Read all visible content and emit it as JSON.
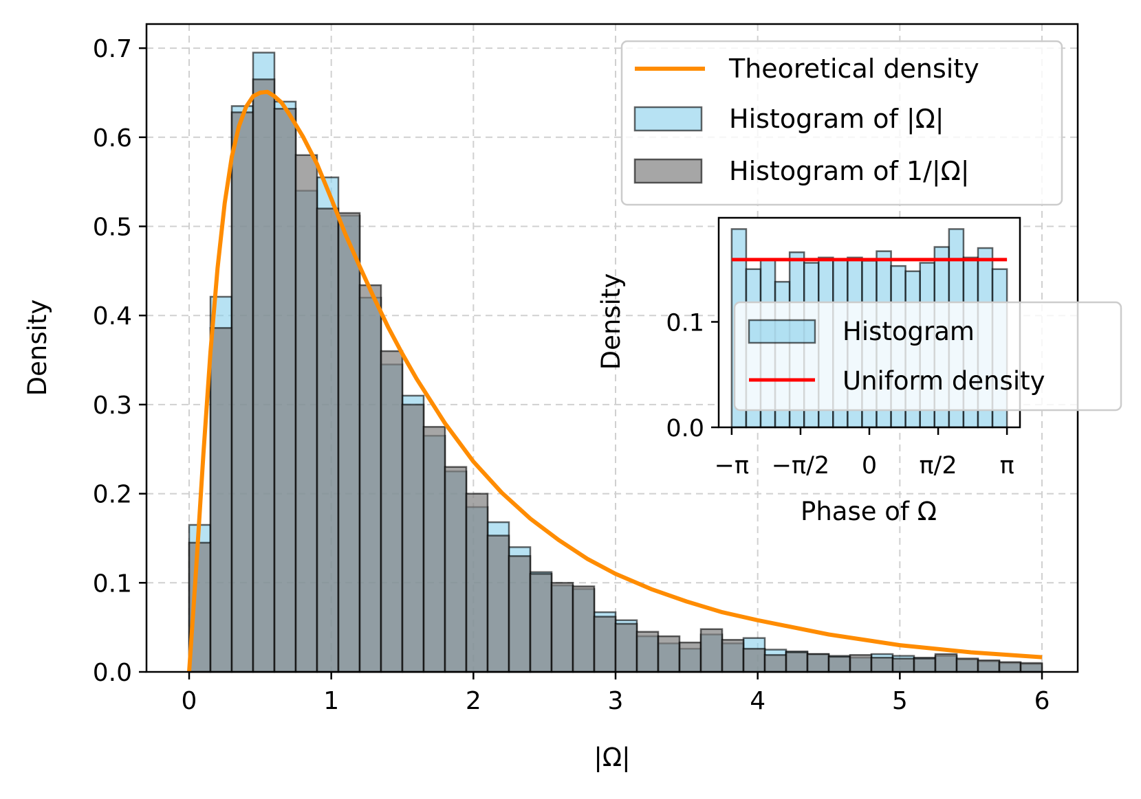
{
  "chart_data": [
    {
      "type": "bar",
      "xlabel": "|Ω|",
      "ylabel": "Density",
      "xlim": [
        -0.3,
        6.3
      ],
      "ylim": [
        0,
        0.73
      ],
      "xticks": [
        "0",
        "1",
        "2",
        "3",
        "4",
        "5",
        "6"
      ],
      "yticks": [
        "0.0",
        "0.1",
        "0.2",
        "0.3",
        "0.4",
        "0.5",
        "0.6",
        "0.7"
      ],
      "grid": true,
      "legend_position": "upper-right",
      "bin_edges": [
        0.0,
        0.15,
        0.3,
        0.45,
        0.6,
        0.75,
        0.9,
        1.05,
        1.2,
        1.35,
        1.5,
        1.65,
        1.8,
        1.95,
        2.1,
        2.25,
        2.4,
        2.55,
        2.7,
        2.85,
        3.0,
        3.15,
        3.3,
        3.45,
        3.6,
        3.75,
        3.9,
        4.05,
        4.2,
        4.35,
        4.5,
        4.65,
        4.8,
        4.95,
        5.1,
        5.25,
        5.4,
        5.55,
        5.7,
        5.85,
        6.0
      ],
      "series": [
        {
          "name": "Histogram of |Ω|",
          "color": "#87ceeb",
          "values": [
            0.165,
            0.421,
            0.635,
            0.695,
            0.64,
            0.54,
            0.555,
            0.512,
            0.42,
            0.345,
            0.31,
            0.265,
            0.225,
            0.185,
            0.168,
            0.14,
            0.112,
            0.097,
            0.093,
            0.067,
            0.058,
            0.04,
            0.032,
            0.026,
            0.042,
            0.032,
            0.038,
            0.025,
            0.023,
            0.02,
            0.018,
            0.016,
            0.02,
            0.018,
            0.016,
            0.018,
            0.014,
            0.012,
            0.01,
            0.009
          ]
        },
        {
          "name": "Histogram of 1/|Ω|",
          "color": "#808080",
          "values": [
            0.145,
            0.386,
            0.628,
            0.665,
            0.632,
            0.58,
            0.52,
            0.515,
            0.434,
            0.36,
            0.3,
            0.275,
            0.23,
            0.2,
            0.153,
            0.13,
            0.11,
            0.1,
            0.096,
            0.062,
            0.054,
            0.045,
            0.04,
            0.033,
            0.048,
            0.036,
            0.026,
            0.019,
            0.022,
            0.02,
            0.017,
            0.019,
            0.016,
            0.015,
            0.015,
            0.02,
            0.015,
            0.013,
            0.011,
            0.01
          ]
        },
        {
          "name": "Theoretical density",
          "type": "line",
          "color": "#ff8c00",
          "x": [
            0.0,
            0.05,
            0.1,
            0.15,
            0.2,
            0.25,
            0.3,
            0.35,
            0.4,
            0.45,
            0.5,
            0.55,
            0.6,
            0.65,
            0.7,
            0.75,
            0.8,
            0.9,
            1.0,
            1.1,
            1.2,
            1.3,
            1.4,
            1.5,
            1.6,
            1.8,
            2.0,
            2.2,
            2.4,
            2.6,
            2.8,
            3.0,
            3.25,
            3.5,
            3.75,
            4.0,
            4.5,
            5.0,
            5.5,
            6.0
          ],
          "y": [
            0.0,
            0.117,
            0.244,
            0.359,
            0.453,
            0.526,
            0.578,
            0.612,
            0.634,
            0.646,
            0.65,
            0.651,
            0.646,
            0.639,
            0.627,
            0.614,
            0.601,
            0.57,
            0.531,
            0.491,
            0.455,
            0.42,
            0.387,
            0.357,
            0.329,
            0.279,
            0.236,
            0.201,
            0.172,
            0.148,
            0.127,
            0.11,
            0.093,
            0.079,
            0.067,
            0.058,
            0.042,
            0.03,
            0.022,
            0.0165
          ]
        }
      ]
    },
    {
      "type": "bar",
      "xlabel": "Phase of Ω",
      "ylabel": "Density",
      "xlim": [
        -3.45,
        3.45
      ],
      "ylim": [
        0,
        0.195
      ],
      "xticks": [
        "−π",
        "−π/2",
        "0",
        "π/2",
        "π"
      ],
      "xtick_values": [
        -3.14159,
        -1.5708,
        0,
        1.5708,
        3.14159
      ],
      "yticks": [
        "0.0",
        "0.1"
      ],
      "ytick_values": [
        0.0,
        0.1
      ],
      "legend_position": "right",
      "bin_edges_from": -3.14159,
      "bin_edges_to": 3.14159,
      "series": [
        {
          "name": "Histogram",
          "color": "#87ceeb",
          "values": [
            0.188,
            0.15,
            0.159,
            0.138,
            0.166,
            0.156,
            0.161,
            0.159,
            0.161,
            0.158,
            0.167,
            0.153,
            0.148,
            0.156,
            0.171,
            0.188,
            0.161,
            0.17,
            0.15
          ]
        },
        {
          "name": "Uniform density",
          "type": "line",
          "color": "#ff0000",
          "y": 0.159
        }
      ]
    }
  ]
}
